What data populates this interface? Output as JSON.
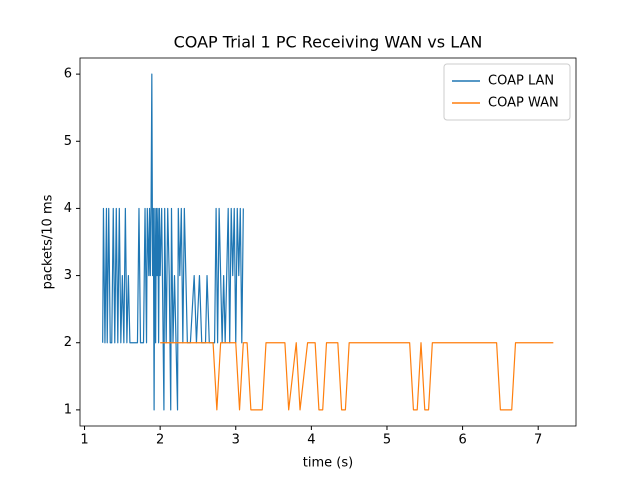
{
  "chart_data": {
    "type": "line",
    "title": "COAP Trial 1 PC Receiving WAN vs LAN",
    "xlabel": "time (s)",
    "ylabel": "packets/10 ms",
    "xlim": [
      0.94,
      7.5
    ],
    "ylim": [
      0.76,
      6.24
    ],
    "xticks": [
      1,
      2,
      3,
      4,
      5,
      6,
      7
    ],
    "yticks": [
      1,
      2,
      3,
      4,
      5,
      6
    ],
    "legend": "upper right",
    "series": [
      {
        "name": "COAP LAN",
        "color": "#1f77b4",
        "x": [
          1.24,
          1.25,
          1.27,
          1.29,
          1.3,
          1.32,
          1.34,
          1.36,
          1.38,
          1.4,
          1.42,
          1.44,
          1.46,
          1.48,
          1.5,
          1.52,
          1.54,
          1.56,
          1.58,
          1.6,
          1.65,
          1.7,
          1.72,
          1.74,
          1.78,
          1.8,
          1.82,
          1.83,
          1.85,
          1.86,
          1.87,
          1.88,
          1.89,
          1.9,
          1.91,
          1.92,
          1.93,
          1.94,
          1.95,
          1.96,
          1.97,
          1.98,
          1.99,
          2.0,
          2.02,
          2.04,
          2.05,
          2.06,
          2.08,
          2.1,
          2.12,
          2.14,
          2.15,
          2.17,
          2.19,
          2.21,
          2.23,
          2.24,
          2.26,
          2.28,
          2.3,
          2.32,
          2.34,
          2.36,
          2.4,
          2.45,
          2.48,
          2.52,
          2.55,
          2.6,
          2.62,
          2.65,
          2.72,
          2.74,
          2.76,
          2.78,
          2.8,
          2.82,
          2.84,
          2.86,
          2.88,
          2.9,
          2.92,
          2.94,
          2.96,
          2.98,
          3.0,
          3.02,
          3.04,
          3.06,
          3.08,
          3.1
        ],
        "values": [
          2,
          4,
          2,
          4,
          2,
          4,
          2,
          2,
          4,
          2,
          4,
          2,
          4,
          2,
          3,
          2,
          4,
          2,
          3,
          2,
          2,
          2,
          4,
          2,
          2,
          4,
          2,
          4,
          3,
          4,
          3,
          4,
          6,
          3,
          4,
          1,
          4,
          2,
          4,
          3,
          4,
          2,
          4,
          3,
          4,
          2,
          1,
          4,
          2,
          4,
          3,
          1,
          4,
          2,
          3,
          2,
          1,
          4,
          3,
          4,
          2,
          4,
          3,
          2,
          2,
          3,
          2,
          3,
          2,
          2,
          3,
          2,
          2,
          4,
          2,
          4,
          3,
          2,
          3,
          2,
          3,
          4,
          2,
          4,
          3,
          4,
          2,
          4,
          3,
          4,
          2,
          4
        ]
      },
      {
        "name": "COAP WAN",
        "color": "#ff7f0e",
        "x": [
          2.0,
          2.7,
          2.75,
          2.8,
          3.0,
          3.05,
          3.1,
          3.15,
          3.2,
          3.3,
          3.35,
          3.4,
          3.65,
          3.7,
          3.8,
          3.85,
          3.95,
          4.05,
          4.1,
          4.15,
          4.2,
          4.35,
          4.4,
          4.45,
          4.5,
          5.3,
          5.35,
          5.4,
          5.45,
          5.5,
          5.55,
          5.6,
          6.45,
          6.5,
          6.65,
          6.7,
          7.2
        ],
        "values": [
          2,
          2,
          1,
          2,
          2,
          1,
          2,
          2,
          1,
          1,
          1,
          2,
          2,
          1,
          2,
          1,
          2,
          2,
          1,
          1,
          2,
          2,
          1,
          1,
          2,
          2,
          1,
          1,
          2,
          1,
          1,
          2,
          2,
          1,
          1,
          2,
          2
        ]
      }
    ]
  }
}
